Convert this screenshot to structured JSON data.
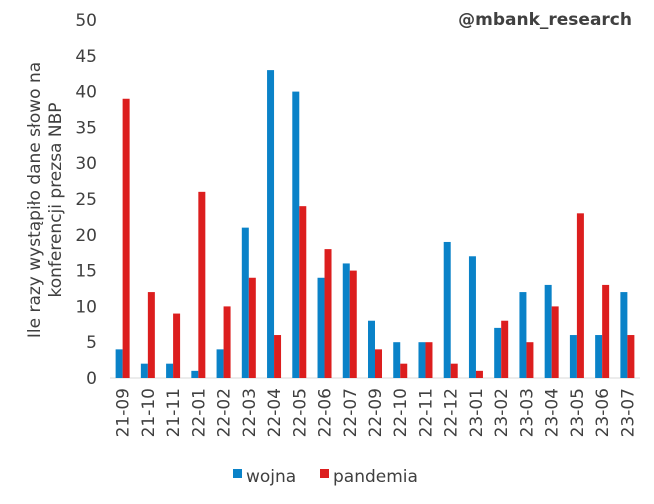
{
  "brand": "@mbank_research",
  "chart_data": {
    "type": "bar",
    "title": "",
    "xlabel": "",
    "ylabel": [
      "Ile razy wystąpiło dane słowo na",
      "konferencji prezsa NBP"
    ],
    "ylim": [
      0,
      50
    ],
    "yticks": [
      0,
      5,
      10,
      15,
      20,
      25,
      30,
      35,
      40,
      45,
      50
    ],
    "grid": false,
    "legend_position": "bottom",
    "categories": [
      "21-09",
      "21-10",
      "21-11",
      "22-01",
      "22-02",
      "22-03",
      "22-04",
      "22-05",
      "22-06",
      "22-07",
      "22-09",
      "22-10",
      "22-11",
      "22-12",
      "23-01",
      "23-02",
      "23-03",
      "23-04",
      "23-05",
      "23-06",
      "23-07"
    ],
    "series": [
      {
        "name": "wojna",
        "color": "#0a82c8",
        "values": [
          4,
          2,
          2,
          1,
          4,
          21,
          43,
          40,
          14,
          16,
          8,
          5,
          5,
          19,
          17,
          7,
          12,
          13,
          6,
          6,
          12
        ]
      },
      {
        "name": "pandemia",
        "color": "#dc1e1e",
        "values": [
          39,
          12,
          9,
          26,
          10,
          14,
          6,
          24,
          18,
          15,
          4,
          2,
          5,
          2,
          1,
          8,
          5,
          10,
          23,
          13,
          6
        ]
      }
    ]
  }
}
